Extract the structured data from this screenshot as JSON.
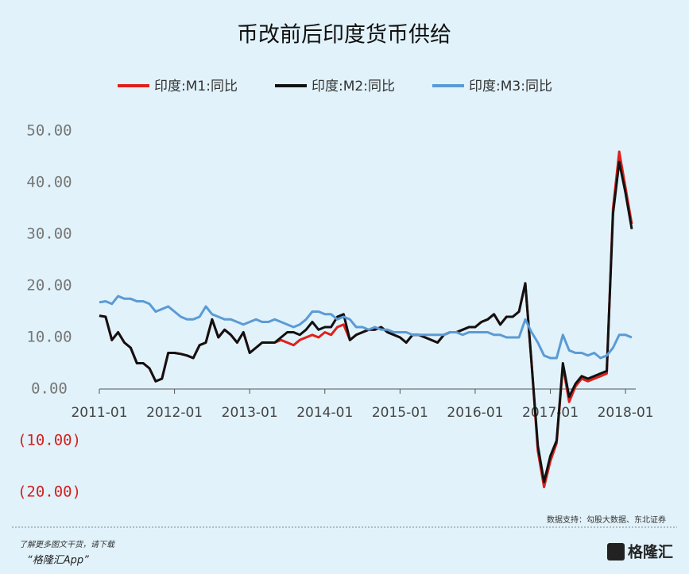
{
  "chart_data": {
    "type": "line",
    "title": "币改前后印度货币供给",
    "categories": [
      "2011-01",
      "2011-02",
      "2011-03",
      "2011-04",
      "2011-05",
      "2011-06",
      "2011-07",
      "2011-08",
      "2011-09",
      "2011-10",
      "2011-11",
      "2011-12",
      "2012-01",
      "2012-02",
      "2012-03",
      "2012-04",
      "2012-05",
      "2012-06",
      "2012-07",
      "2012-08",
      "2012-09",
      "2012-10",
      "2012-11",
      "2012-12",
      "2013-01",
      "2013-02",
      "2013-03",
      "2013-04",
      "2013-05",
      "2013-06",
      "2013-07",
      "2013-08",
      "2013-09",
      "2013-10",
      "2013-11",
      "2013-12",
      "2014-01",
      "2014-02",
      "2014-03",
      "2014-04",
      "2014-05",
      "2014-06",
      "2014-07",
      "2014-08",
      "2014-09",
      "2014-10",
      "2014-11",
      "2014-12",
      "2015-01",
      "2015-02",
      "2015-03",
      "2015-04",
      "2015-05",
      "2015-06",
      "2015-07",
      "2015-08",
      "2015-09",
      "2015-10",
      "2015-11",
      "2015-12",
      "2016-01",
      "2016-02",
      "2016-03",
      "2016-04",
      "2016-05",
      "2016-06",
      "2016-07",
      "2016-08",
      "2016-09",
      "2016-10",
      "2016-11",
      "2016-12",
      "2017-01",
      "2017-02",
      "2017-03",
      "2017-04",
      "2017-05",
      "2017-06",
      "2017-07",
      "2017-08",
      "2017-09",
      "2017-10",
      "2017-11",
      "2017-12",
      "2018-01",
      "2018-02"
    ],
    "xticks": [
      "2011-01",
      "2012-01",
      "2013-01",
      "2014-01",
      "2015-01",
      "2016-01",
      "2017-01",
      "2018-01"
    ],
    "series": [
      {
        "name": "印度:M1:同比",
        "color": "#e0201b",
        "values": [
          14.2,
          14,
          9.5,
          11,
          9,
          8,
          5,
          5,
          4,
          1.5,
          2,
          7,
          7,
          6.8,
          6.5,
          6,
          8.5,
          9,
          13.5,
          10,
          11.5,
          10.5,
          9,
          11,
          7,
          8,
          9,
          9,
          9,
          9.5,
          9,
          8.5,
          9.5,
          10,
          10.5,
          10,
          11,
          10.5,
          12,
          12.5,
          9.5,
          10.5,
          11,
          11.5,
          11.5,
          12,
          11,
          10.5,
          10,
          9,
          10.5,
          10.5,
          10,
          9.5,
          9,
          10.5,
          11,
          11,
          11.5,
          12,
          12,
          13,
          13.5,
          14.5,
          12.5,
          14,
          14,
          15,
          20.5,
          5,
          -12,
          -19,
          -14,
          -10.5,
          4.5,
          -2.5,
          0.5,
          2,
          1.5,
          2,
          2.5,
          3,
          35,
          46,
          39,
          32
        ]
      },
      {
        "name": "印度:M2:同比",
        "color": "#111111",
        "values": [
          14.2,
          14,
          9.5,
          11,
          9,
          8,
          5,
          5,
          4,
          1.5,
          2,
          7,
          7,
          6.8,
          6.5,
          6,
          8.5,
          9,
          13.5,
          10,
          11.5,
          10.5,
          9,
          11,
          7,
          8,
          9,
          9,
          9,
          10,
          11,
          11,
          10.5,
          11.5,
          13,
          11.5,
          12,
          12,
          14,
          14.5,
          9.5,
          10.5,
          11,
          11.5,
          11.5,
          12,
          11,
          10.5,
          10,
          9,
          10.5,
          10.5,
          10,
          9.5,
          9,
          10.5,
          11,
          11,
          11.5,
          12,
          12,
          13,
          13.5,
          14.5,
          12.5,
          14,
          14,
          15,
          20.5,
          5,
          -11,
          -18,
          -13,
          -10,
          5,
          -1.5,
          1,
          2.5,
          2,
          2.5,
          3,
          3.5,
          34,
          44,
          38,
          31
        ]
      },
      {
        "name": "印度:M3:同比",
        "color": "#5b9bd5",
        "values": [
          16.8,
          17,
          16.5,
          18,
          17.5,
          17.5,
          17,
          17,
          16.5,
          15,
          15.5,
          16,
          15,
          14,
          13.5,
          13.5,
          14,
          16,
          14.5,
          14,
          13.5,
          13.5,
          13,
          12.5,
          13,
          13.5,
          13,
          13,
          13.5,
          13,
          12.5,
          12,
          12.5,
          13.5,
          15,
          15,
          14.5,
          14.5,
          13.5,
          14,
          13.5,
          12,
          12,
          11.5,
          12,
          11.5,
          11.5,
          11,
          11,
          11,
          10.5,
          10.5,
          10.5,
          10.5,
          10.5,
          10.5,
          11,
          11,
          10.5,
          11,
          11,
          11,
          11,
          10.5,
          10.5,
          10,
          10,
          10,
          13.5,
          11,
          9,
          6.5,
          6,
          6,
          10.5,
          7.5,
          7,
          7,
          6.5,
          7,
          6,
          6.5,
          8,
          10.5,
          10.5,
          10
        ]
      }
    ],
    "ylim": [
      -20,
      50
    ],
    "yticks": [
      {
        "value": 50,
        "label": "50.00"
      },
      {
        "value": 40,
        "label": "40.00"
      },
      {
        "value": 30,
        "label": "30.00"
      },
      {
        "value": 20,
        "label": "20.00"
      },
      {
        "value": 10,
        "label": "10.00"
      },
      {
        "value": 0,
        "label": "0.00"
      },
      {
        "value": -10,
        "label": "(10.00)"
      },
      {
        "value": -20,
        "label": "(20.00)"
      }
    ],
    "negative_tick_color": "#d42020",
    "source": "数据支持：勾股大数据、东北证券"
  },
  "footer": {
    "line1": "了解更多图文干货，请下载",
    "line2": "“格隆汇App”",
    "logo": "格隆汇"
  }
}
